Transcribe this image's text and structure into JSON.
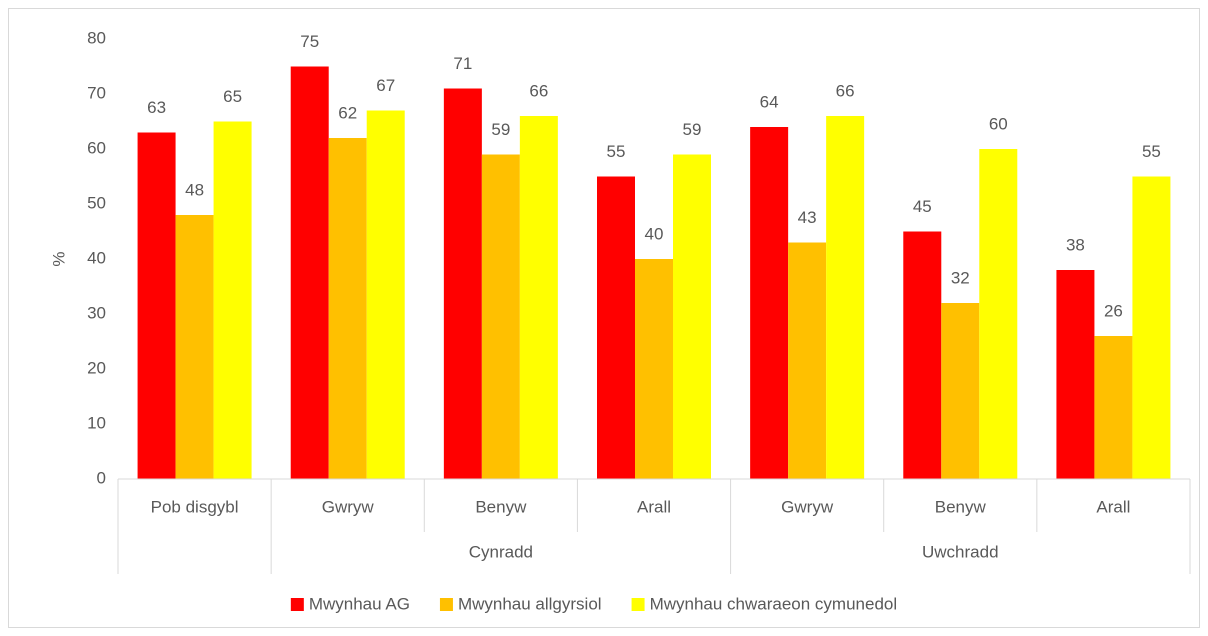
{
  "chart_data": {
    "type": "bar",
    "y_label": "%",
    "categories": [
      "Pob disgybl",
      "Gwryw",
      "Benyw",
      "Arall",
      "Gwryw",
      "Benyw",
      "Arall"
    ],
    "groups": [
      {
        "name": null,
        "size": 1
      },
      {
        "name": "Cynradd",
        "size": 3
      },
      {
        "name": "Uwchradd",
        "size": 3
      }
    ],
    "series": [
      {
        "name": "Mwynhau AG",
        "color": "#ff0000",
        "values": [
          63,
          75,
          71,
          55,
          64,
          45,
          38
        ]
      },
      {
        "name": "Mwynhau allgyrsiol",
        "color": "#ffc000",
        "values": [
          48,
          62,
          59,
          40,
          43,
          32,
          26
        ]
      },
      {
        "name": "Mwynhau chwaraeon cymunedol",
        "color": "#ffff00",
        "values": [
          65,
          67,
          66,
          59,
          66,
          60,
          55
        ]
      }
    ],
    "ylim": [
      0,
      80
    ],
    "yticks": [
      0,
      10,
      20,
      30,
      40,
      50,
      60,
      70,
      80
    ],
    "grid": false,
    "legend": "bottom"
  }
}
